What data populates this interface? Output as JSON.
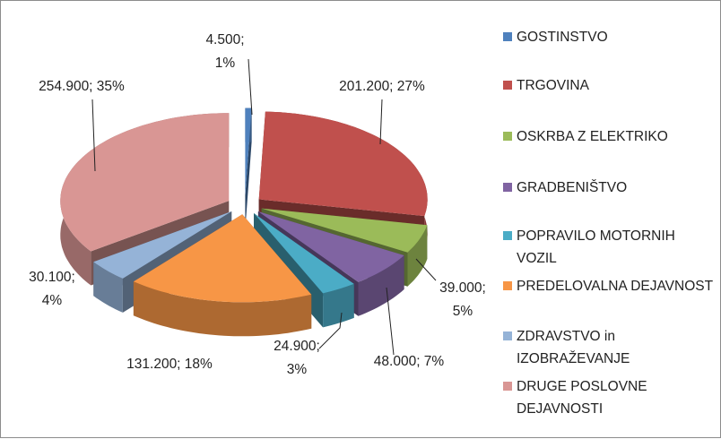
{
  "chart_data": {
    "type": "pie3d",
    "categories": [
      "GOSTINSTVO",
      "TRGOVINA",
      "OSKRBA Z ELEKTRIKO",
      "GRADBENIŠTVO",
      "POPRAVILO MOTORNIH VOZIL",
      "PREDELOVALNA DEJAVNOST",
      "ZDRAVSTVO in IZOBRAŽEVANJE",
      "DRUGE POSLOVNE DEJAVNOSTI"
    ],
    "values": [
      4500,
      201200,
      39000,
      48000,
      24900,
      131200,
      30100,
      254900
    ],
    "value_labels": [
      "4.500; 1%",
      "201.200; 27%",
      "39.000; 5%",
      "48.000; 7%",
      "24.900; 3%",
      "131.200; 18%",
      "30.100; 4%",
      "254.900; 35%"
    ],
    "colors": [
      "#4f81bd",
      "#c0504d",
      "#9bbb59",
      "#8064a2",
      "#4bacc6",
      "#f79646",
      "#95b3d7",
      "#d99694"
    ],
    "legend": "right"
  }
}
